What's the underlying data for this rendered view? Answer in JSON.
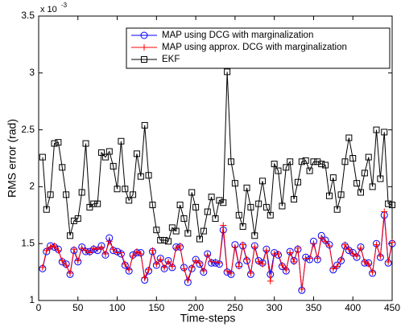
{
  "chart_data": {
    "type": "line",
    "xlabel": "Time-steps",
    "ylabel": "RMS error (rad)",
    "y_multiplier": "x 10",
    "y_multiplier_exponent": "-3",
    "x": [
      5,
      10,
      15,
      20,
      25,
      30,
      35,
      40,
      45,
      50,
      55,
      60,
      65,
      70,
      75,
      80,
      85,
      90,
      95,
      100,
      105,
      110,
      115,
      120,
      125,
      130,
      135,
      140,
      145,
      150,
      155,
      160,
      165,
      170,
      175,
      180,
      185,
      190,
      195,
      200,
      205,
      210,
      215,
      220,
      225,
      230,
      235,
      240,
      245,
      250,
      255,
      260,
      265,
      270,
      275,
      280,
      285,
      290,
      295,
      300,
      305,
      310,
      315,
      320,
      325,
      330,
      335,
      340,
      345,
      350,
      355,
      360,
      365,
      370,
      375,
      380,
      385,
      390,
      395,
      400,
      405,
      410,
      415,
      420,
      425,
      430,
      435,
      440,
      445,
      450
    ],
    "series": [
      {
        "name": "MAP using DCG with marginalization",
        "color": "#0000ff",
        "marker": "circle",
        "values": [
          1.28,
          1.43,
          1.48,
          1.47,
          1.45,
          1.34,
          1.32,
          1.23,
          1.44,
          1.34,
          1.47,
          1.43,
          1.43,
          1.45,
          1.44,
          1.48,
          1.4,
          1.55,
          1.44,
          1.43,
          1.41,
          1.31,
          1.26,
          1.4,
          1.42,
          1.42,
          1.18,
          1.26,
          1.43,
          1.31,
          1.37,
          1.28,
          1.35,
          1.29,
          1.47,
          1.47,
          1.29,
          1.16,
          1.28,
          1.36,
          1.32,
          1.25,
          1.41,
          1.33,
          1.33,
          1.32,
          1.62,
          1.25,
          1.23,
          1.49,
          1.31,
          1.48,
          1.35,
          1.23,
          1.48,
          1.35,
          1.33,
          1.45,
          1.23,
          1.42,
          1.4,
          1.3,
          1.26,
          1.43,
          1.35,
          1.45,
          1.09,
          1.38,
          1.36,
          1.52,
          1.36,
          1.57,
          1.53,
          1.49,
          1.27,
          1.31,
          1.35,
          1.48,
          1.44,
          1.42,
          1.38,
          1.47,
          1.33,
          1.33,
          1.24,
          1.5,
          1.38,
          1.75,
          1.33,
          1.5
        ]
      },
      {
        "name": "MAP using approx. DCG with marginalization",
        "color": "#ff0000",
        "marker": "plus",
        "values": [
          1.29,
          1.44,
          1.47,
          1.48,
          1.44,
          1.35,
          1.31,
          1.24,
          1.45,
          1.35,
          1.46,
          1.44,
          1.42,
          1.46,
          1.45,
          1.47,
          1.41,
          1.52,
          1.45,
          1.42,
          1.42,
          1.32,
          1.27,
          1.39,
          1.43,
          1.41,
          1.2,
          1.27,
          1.44,
          1.32,
          1.36,
          1.29,
          1.34,
          1.3,
          1.46,
          1.48,
          1.28,
          1.18,
          1.29,
          1.35,
          1.33,
          1.26,
          1.4,
          1.34,
          1.34,
          1.33,
          1.66,
          1.26,
          1.24,
          1.47,
          1.3,
          1.49,
          1.36,
          1.24,
          1.47,
          1.34,
          1.32,
          1.44,
          1.17,
          1.41,
          1.41,
          1.31,
          1.27,
          1.42,
          1.34,
          1.46,
          1.1,
          1.37,
          1.37,
          1.5,
          1.37,
          1.55,
          1.52,
          1.48,
          1.28,
          1.3,
          1.36,
          1.49,
          1.45,
          1.41,
          1.39,
          1.46,
          1.34,
          1.32,
          1.25,
          1.49,
          1.39,
          1.78,
          1.34,
          1.51
        ]
      },
      {
        "name": "EKF",
        "color": "#000000",
        "marker": "square",
        "values": [
          2.26,
          1.8,
          1.93,
          2.38,
          2.39,
          2.17,
          1.93,
          1.57,
          1.7,
          1.72,
          1.95,
          2.38,
          1.82,
          1.85,
          1.85,
          2.3,
          2.26,
          2.31,
          2.18,
          1.98,
          2.4,
          1.98,
          1.88,
          1.93,
          2.29,
          2.09,
          2.54,
          2.1,
          1.84,
          1.62,
          1.53,
          1.53,
          1.52,
          1.64,
          1.61,
          1.84,
          1.72,
          1.59,
          1.95,
          1.82,
          1.54,
          1.61,
          1.78,
          1.91,
          1.72,
          1.88,
          1.86,
          3.01,
          2.22,
          2.03,
          1.75,
          1.65,
          1.99,
          1.82,
          1.57,
          1.85,
          2.05,
          1.82,
          1.75,
          2.2,
          2.14,
          1.83,
          2.17,
          2.22,
          1.89,
          2.04,
          2.22,
          2.23,
          2.14,
          2.22,
          2.22,
          2.2,
          2.19,
          1.92,
          2.08,
          1.8,
          1.93,
          2.22,
          2.43,
          2.25,
          2.03,
          1.95,
          2.12,
          2.26,
          2.0,
          2.5,
          2.07,
          2.48,
          1.85,
          1.84
        ]
      }
    ],
    "xlim": [
      0,
      450
    ],
    "xticks": [
      0,
      50,
      100,
      150,
      200,
      250,
      300,
      350,
      400,
      450
    ],
    "ylim": [
      1,
      3.5
    ],
    "yticks": [
      1,
      1.5,
      2,
      2.5,
      3,
      3.5
    ],
    "legend": "upper right"
  }
}
